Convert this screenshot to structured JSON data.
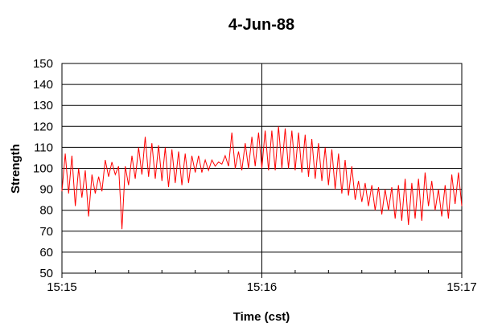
{
  "chart_data": {
    "type": "line",
    "title": "4-Jun-88",
    "xlabel": "Time (cst)",
    "ylabel": "Strength",
    "x_ticks": [
      "15:15",
      "15:16",
      "15:17"
    ],
    "ylim": [
      50,
      150
    ],
    "y_ticks": [
      50,
      60,
      70,
      80,
      90,
      100,
      110,
      120,
      130,
      140,
      150
    ],
    "grid": true,
    "line_color": "#ff0000",
    "series": [
      {
        "x": [
          "15:15:00",
          "15:15:01",
          "15:15:02",
          "15:15:03",
          "15:15:04",
          "15:15:05",
          "15:15:06",
          "15:15:07",
          "15:15:08",
          "15:15:09",
          "15:15:10",
          "15:15:11",
          "15:15:12",
          "15:15:13",
          "15:15:14",
          "15:15:15",
          "15:15:16",
          "15:15:17",
          "15:15:18",
          "15:15:19",
          "15:15:20",
          "15:15:21",
          "15:15:22",
          "15:15:23",
          "15:15:24",
          "15:15:25",
          "15:15:26",
          "15:15:27",
          "15:15:28",
          "15:15:29",
          "15:15:30",
          "15:15:31",
          "15:15:32",
          "15:15:33",
          "15:15:34",
          "15:15:35",
          "15:15:36",
          "15:15:37",
          "15:15:38",
          "15:15:39",
          "15:15:40",
          "15:15:41",
          "15:15:42",
          "15:15:43",
          "15:15:44",
          "15:15:45",
          "15:15:46",
          "15:15:47",
          "15:15:48",
          "15:15:49",
          "15:15:50",
          "15:15:51",
          "15:15:52",
          "15:15:53",
          "15:15:54",
          "15:15:55",
          "15:15:56",
          "15:15:57",
          "15:15:58",
          "15:15:59",
          "15:16:00",
          "15:16:01",
          "15:16:02",
          "15:16:03",
          "15:16:04",
          "15:16:05",
          "15:16:06",
          "15:16:07",
          "15:16:08",
          "15:16:09",
          "15:16:10",
          "15:16:11",
          "15:16:12",
          "15:16:13",
          "15:16:14",
          "15:16:15",
          "15:16:16",
          "15:16:17",
          "15:16:18",
          "15:16:19",
          "15:16:20",
          "15:16:21",
          "15:16:22",
          "15:16:23",
          "15:16:24",
          "15:16:25",
          "15:16:26",
          "15:16:27",
          "15:16:28",
          "15:16:29",
          "15:16:30",
          "15:16:31",
          "15:16:32",
          "15:16:33",
          "15:16:34",
          "15:16:35",
          "15:16:36",
          "15:16:37",
          "15:16:38",
          "15:16:39",
          "15:16:40",
          "15:16:41",
          "15:16:42",
          "15:16:43",
          "15:16:44",
          "15:16:45",
          "15:16:46",
          "15:16:47",
          "15:16:48",
          "15:16:49",
          "15:16:50",
          "15:16:51",
          "15:16:52",
          "15:16:53",
          "15:16:54",
          "15:16:55",
          "15:16:56",
          "15:16:57",
          "15:16:58",
          "15:16:59",
          "15:17:00"
        ],
        "values": [
          89,
          107,
          88,
          106,
          82,
          100,
          86,
          99,
          77,
          97,
          88,
          96,
          89,
          104,
          96,
          103,
          97,
          101,
          71,
          101,
          92,
          106,
          95,
          110,
          97,
          115,
          96,
          112,
          95,
          111,
          94,
          110,
          91,
          109,
          93,
          108,
          92,
          107,
          93,
          106,
          98,
          106,
          98,
          104,
          99,
          104,
          101,
          103,
          102,
          106,
          101,
          117,
          100,
          108,
          99,
          112,
          100,
          115,
          101,
          117,
          100,
          118,
          99,
          118,
          99,
          120,
          100,
          119,
          100,
          118,
          99,
          117,
          98,
          116,
          96,
          114,
          95,
          112,
          94,
          110,
          92,
          109,
          90,
          107,
          88,
          104,
          87,
          101,
          85,
          94,
          84,
          93,
          82,
          92,
          80,
          91,
          78,
          90,
          80,
          91,
          76,
          92,
          75,
          95,
          73,
          93,
          76,
          95,
          75,
          98,
          82,
          94,
          80,
          90,
          77,
          92,
          76,
          97,
          83,
          98,
          82
        ]
      }
    ]
  }
}
